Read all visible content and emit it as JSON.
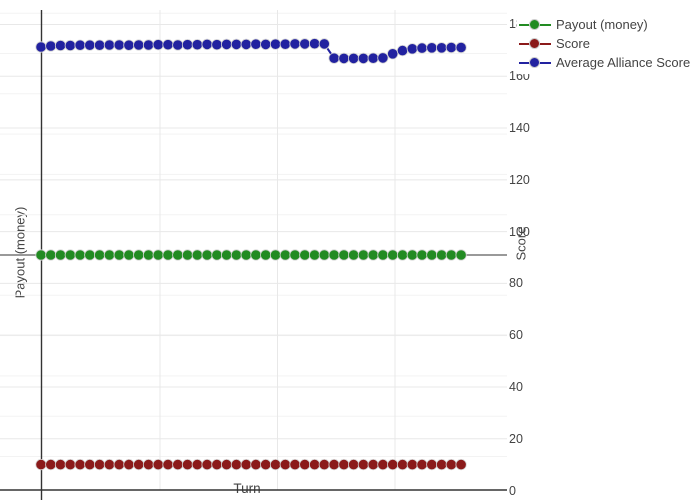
{
  "figure": {
    "x_axis_title": "Turn",
    "y_left_axis_title": "Payout (money)",
    "y_right_axis_title": "Score"
  },
  "legend": {
    "items": [
      {
        "label": "Payout (money)",
        "color": "#228B22"
      },
      {
        "label": "Score",
        "color": "#8B1A1A"
      },
      {
        "label": "Average Alliance Score",
        "color": "#2222A0"
      }
    ]
  },
  "colors": {
    "payout_green": "#228B22",
    "score_red": "#8B1A1A",
    "alliance_blue": "#2222A0",
    "grid_light": "#e8e8e8",
    "grid_faint": "#f3f3f3",
    "zeroline_gray": "#999999",
    "axisline_dark": "#333333",
    "text": "#444444"
  },
  "chart_data": {
    "type": "line",
    "title": "",
    "xlabel": "Turn",
    "ylabel_left": "Payout (money)",
    "ylabel_right": "Score",
    "y_right_ticks": [
      0,
      20,
      40,
      60,
      80,
      100,
      120,
      140,
      160,
      180
    ],
    "y_right_range": [
      0,
      180
    ],
    "x": [
      0,
      1,
      2,
      3,
      4,
      5,
      6,
      7,
      8,
      9,
      10,
      11,
      12,
      13,
      14,
      15,
      16,
      17,
      18,
      19,
      20,
      21,
      22,
      23,
      24,
      25,
      26,
      27,
      28,
      29,
      30,
      31,
      32,
      33,
      34,
      35,
      36,
      37,
      38,
      39,
      40,
      41,
      42,
      43
    ],
    "legend_position": "top-right",
    "grid": true,
    "series": [
      {
        "name": "Payout (money)",
        "axis": "left",
        "color": "#228B22",
        "values": [
          0,
          0,
          0,
          0,
          0,
          0,
          0,
          0,
          0,
          0,
          0,
          0,
          0,
          0,
          0,
          0,
          0,
          0,
          0,
          0,
          0,
          0,
          0,
          0,
          0,
          0,
          0,
          0,
          0,
          0,
          0,
          0,
          0,
          0,
          0,
          0,
          0,
          0,
          0,
          0,
          0,
          0,
          0,
          0
        ]
      },
      {
        "name": "Score",
        "axis": "right",
        "color": "#8B1A1A",
        "values": [
          10,
          10,
          10,
          10,
          10,
          10,
          10,
          10,
          10,
          10,
          10,
          10,
          10,
          10,
          10,
          10,
          10,
          10,
          10,
          10,
          10,
          10,
          10,
          10,
          10,
          10,
          10,
          10,
          10,
          10,
          10,
          10,
          10,
          10,
          10,
          10,
          10,
          10,
          10,
          10,
          10,
          10,
          10,
          10
        ]
      },
      {
        "name": "Average Alliance Score",
        "axis": "right",
        "color": "#2222A0",
        "values": [
          171.3,
          171.7,
          171.9,
          171.9,
          172.0,
          172.0,
          172.0,
          172.1,
          172.1,
          172.0,
          172.1,
          172.1,
          172.2,
          172.2,
          172.1,
          172.2,
          172.2,
          172.3,
          172.2,
          172.3,
          172.3,
          172.3,
          172.4,
          172.3,
          172.4,
          172.4,
          172.5,
          172.5,
          172.6,
          172.5,
          167.0,
          166.9,
          166.9,
          166.9,
          167.0,
          167.1,
          168.7,
          169.9,
          170.6,
          170.9,
          171.0,
          171.0,
          171.1,
          171.1
        ]
      }
    ]
  }
}
